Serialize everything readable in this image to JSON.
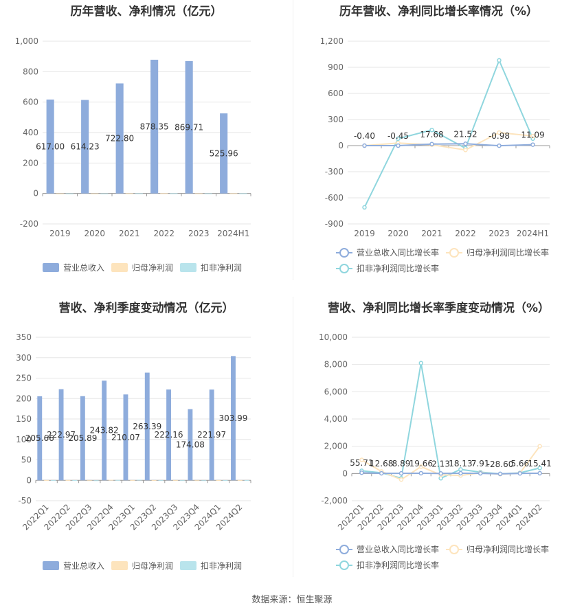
{
  "footer": {
    "source": "数据来源：恒生聚源"
  },
  "colors": {
    "revenue": "#8eacdc",
    "net_profit": "#fde4bd",
    "deducted": "#b9e4ec",
    "rev_growth": "#8eacdc",
    "np_growth": "#fde4bd",
    "ded_growth": "#8fd6de"
  },
  "chart_data": [
    {
      "id": "annual-amount",
      "type": "bar",
      "title": "历年营收、净利情况（亿元）",
      "categories": [
        "2019",
        "2020",
        "2021",
        "2022",
        "2023",
        "2024H1"
      ],
      "ylim": [
        -200,
        1000
      ],
      "yticks": [
        -200,
        0,
        200,
        400,
        600,
        800,
        1000
      ],
      "ytick_labels": [
        "-200",
        "0",
        "200",
        "400",
        "600",
        "800",
        "1,000"
      ],
      "series": [
        {
          "name": "营业总收入",
          "values": [
            617.0,
            614.23,
            722.8,
            878.35,
            869.71,
            525.96
          ],
          "labels": [
            "617.00",
            "614.23",
            "722.80",
            "878.35",
            "869.71",
            "525.96"
          ]
        },
        {
          "name": "归母净利润",
          "values": [
            -1.5,
            -1.0,
            0.8,
            1.2,
            0.5,
            0.9
          ]
        },
        {
          "name": "扣非净利润",
          "values": [
            -3.0,
            -1.8,
            0.6,
            1.0,
            0.3,
            0.8
          ]
        }
      ],
      "legend": "bottom"
    },
    {
      "id": "annual-growth",
      "type": "line",
      "title": "历年营收、净利同比增长率情况（%）",
      "categories": [
        "2019",
        "2020",
        "2021",
        "2022",
        "2023",
        "2024H1"
      ],
      "ylim": [
        -900,
        1200
      ],
      "yticks": [
        -900,
        -600,
        -300,
        0,
        300,
        600,
        900,
        1200
      ],
      "ytick_labels": [
        "-900",
        "-600",
        "-300",
        "0",
        "300",
        "600",
        "900",
        "1,200"
      ],
      "series": [
        {
          "name": "营业总收入同比增长率",
          "values": [
            -0.4,
            -0.45,
            17.68,
            21.52,
            -0.98,
            11.09
          ],
          "labels": [
            "-0.40",
            "-0.45",
            "17.68",
            "21.52",
            "-0.98",
            "11.09"
          ]
        },
        {
          "name": "归母净利润同比增长率",
          "values": [
            0,
            30,
            10,
            -50,
            150,
            110
          ]
        },
        {
          "name": "扣非净利润同比增长率",
          "values": [
            -710,
            80,
            180,
            -30,
            980,
            80
          ]
        }
      ],
      "legend": "bottom"
    },
    {
      "id": "quarter-amount",
      "type": "bar",
      "title": "营收、净利季度变动情况（亿元）",
      "categories": [
        "2022Q1",
        "2022Q2",
        "2022Q3",
        "2022Q4",
        "2023Q1",
        "2023Q2",
        "2023Q3",
        "2023Q4",
        "2024Q1",
        "2024Q2"
      ],
      "ylim": [
        -50,
        350
      ],
      "yticks": [
        -50,
        0,
        50,
        100,
        150,
        200,
        250,
        300,
        350
      ],
      "ytick_labels": [
        "-50",
        "0",
        "50",
        "100",
        "150",
        "200",
        "250",
        "300",
        "350"
      ],
      "series": [
        {
          "name": "营业总收入",
          "values": [
            205.66,
            222.97,
            205.89,
            243.82,
            210.07,
            263.39,
            222.16,
            174.08,
            221.97,
            303.99
          ],
          "labels": [
            "205.66",
            "222.97",
            "205.89",
            "243.82",
            "210.07",
            "263.39",
            "222.16",
            "174.08",
            "221.97",
            "303.99"
          ]
        },
        {
          "name": "归母净利润",
          "values": [
            0.5,
            0.6,
            -1.0,
            1.2,
            0.6,
            0.3,
            0.2,
            -0.5,
            0.4,
            0.6
          ]
        },
        {
          "name": "扣非净利润",
          "values": [
            0.3,
            0.4,
            -1.8,
            0.8,
            1.5,
            0.2,
            0.1,
            -0.6,
            0.3,
            0.5
          ]
        }
      ],
      "legend": "bottom"
    },
    {
      "id": "quarter-growth",
      "type": "line",
      "title": "营收、净利同比增长率季度变动情况（%）",
      "categories": [
        "2022Q1",
        "2022Q2",
        "2022Q3",
        "2022Q4",
        "2023Q1",
        "2023Q2",
        "2023Q3",
        "2023Q4",
        "2024Q1",
        "2024Q2"
      ],
      "ylim": [
        -2000,
        10000
      ],
      "yticks": [
        -2000,
        0,
        2000,
        4000,
        6000,
        8000,
        10000
      ],
      "ytick_labels": [
        "-2,000",
        "0",
        "2,000",
        "4,000",
        "6,000",
        "8,000",
        "10,000"
      ],
      "series": [
        {
          "name": "营业总收入同比增长率",
          "values": [
            55.71,
            12.68,
            8.89,
            19.66,
            2.13,
            18.13,
            7.91,
            -28.6,
            5.66,
            15.41
          ],
          "labels": [
            "55.71",
            "12.68",
            "8.89",
            "19.66",
            "2.13",
            "18.13",
            "7.91",
            "-28.60",
            "5.66",
            "15.41"
          ]
        },
        {
          "name": "归母净利润同比增长率",
          "values": [
            1000,
            150,
            -450,
            500,
            -100,
            -150,
            50,
            -50,
            30,
            2000
          ]
        },
        {
          "name": "扣非净利润同比增长率",
          "values": [
            200,
            50,
            -350,
            8100,
            -350,
            300,
            100,
            -30,
            50,
            400
          ]
        }
      ],
      "legend": "bottom"
    }
  ]
}
